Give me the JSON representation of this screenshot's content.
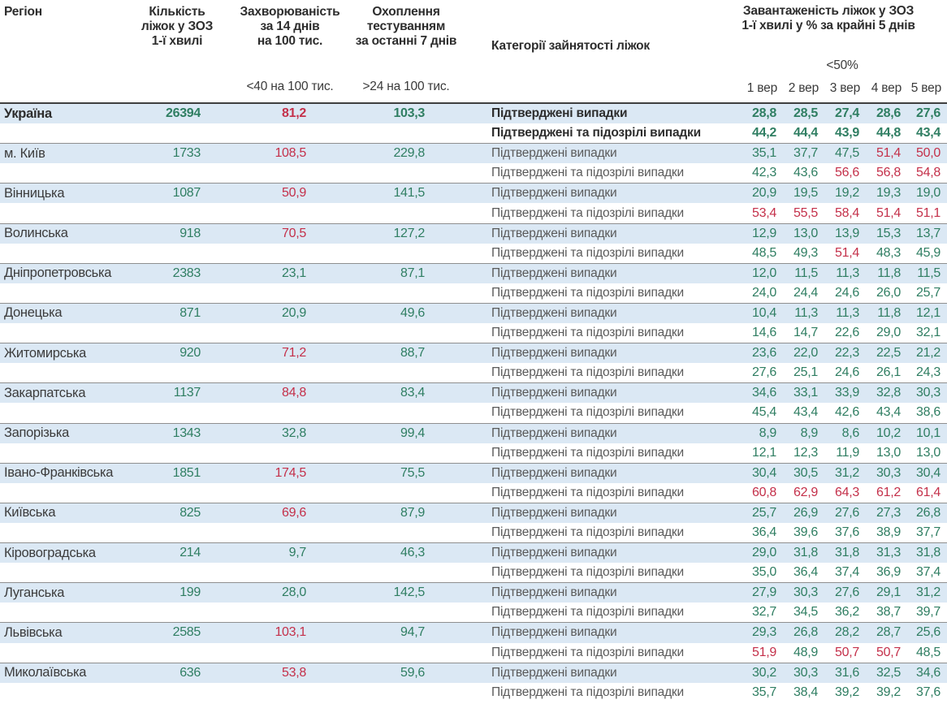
{
  "header": {
    "region": "Регіон",
    "beds": "Кількість\nліжок у ЗОЗ\n1-ї хвилі",
    "incidence": "Захворюваність\nза 14 днів\nна 100 тис.",
    "testing": "Охоплення\nтестуванням\nза останні 7 днів",
    "category": "Категорії зайнятості ліжок",
    "occupancy": "Завантаженість ліжок у ЗОЗ\n1-ї хвилі у % за крайні 5 днів",
    "incidence_threshold": "<40 на 100 тис.",
    "testing_threshold": ">24 на 100 тис.",
    "occupancy_threshold": "<50%",
    "dates": [
      "1 вер",
      "2 вер",
      "3 вер",
      "4 вер",
      "5 вер"
    ]
  },
  "category_labels": {
    "confirmed": "Підтверджені випадки",
    "confirmed_suspected": "Підтверджені та підозрілі випадки"
  },
  "colors": {
    "green": "#2f7e62",
    "red": "#c4304a",
    "row_highlight": "#dbe8f4"
  },
  "rules": {
    "incidence_red_min": 40,
    "occupancy_red_min": 50
  },
  "regions": [
    {
      "name": "Україна",
      "bold": true,
      "beds": "26394",
      "incidence": "81,2",
      "testing": "103,3",
      "occupancy_confirmed": [
        "28,8",
        "28,5",
        "27,4",
        "28,6",
        "27,6"
      ],
      "occupancy_confirmed_suspected": [
        "44,2",
        "44,4",
        "43,9",
        "44,8",
        "43,4"
      ]
    },
    {
      "name": "м. Київ",
      "bold": false,
      "beds": "1733",
      "incidence": "108,5",
      "testing": "229,8",
      "occupancy_confirmed": [
        "35,1",
        "37,7",
        "47,5",
        "51,4",
        "50,0"
      ],
      "occupancy_confirmed_suspected": [
        "42,3",
        "43,6",
        "56,6",
        "56,8",
        "54,8"
      ]
    },
    {
      "name": "Вінницька",
      "bold": false,
      "beds": "1087",
      "incidence": "50,9",
      "testing": "141,5",
      "occupancy_confirmed": [
        "20,9",
        "19,5",
        "19,2",
        "19,3",
        "19,0"
      ],
      "occupancy_confirmed_suspected": [
        "53,4",
        "55,5",
        "58,4",
        "51,4",
        "51,1"
      ]
    },
    {
      "name": "Волинська",
      "bold": false,
      "beds": "918",
      "incidence": "70,5",
      "testing": "127,2",
      "occupancy_confirmed": [
        "12,9",
        "13,0",
        "13,9",
        "15,3",
        "13,7"
      ],
      "occupancy_confirmed_suspected": [
        "48,5",
        "49,3",
        "51,4",
        "48,3",
        "45,9"
      ]
    },
    {
      "name": "Дніпропетровська",
      "bold": false,
      "beds": "2383",
      "incidence": "23,1",
      "testing": "87,1",
      "occupancy_confirmed": [
        "12,0",
        "11,5",
        "11,3",
        "11,8",
        "11,5"
      ],
      "occupancy_confirmed_suspected": [
        "24,0",
        "24,4",
        "24,6",
        "26,0",
        "25,7"
      ]
    },
    {
      "name": "Донецька",
      "bold": false,
      "beds": "871",
      "incidence": "20,9",
      "testing": "49,6",
      "occupancy_confirmed": [
        "10,4",
        "11,3",
        "11,3",
        "11,8",
        "12,1"
      ],
      "occupancy_confirmed_suspected": [
        "14,6",
        "14,7",
        "22,6",
        "29,0",
        "32,1"
      ]
    },
    {
      "name": "Житомирська",
      "bold": false,
      "beds": "920",
      "incidence": "71,2",
      "testing": "88,7",
      "occupancy_confirmed": [
        "23,6",
        "22,0",
        "22,3",
        "22,5",
        "21,2"
      ],
      "occupancy_confirmed_suspected": [
        "27,6",
        "25,1",
        "24,6",
        "26,1",
        "24,3"
      ]
    },
    {
      "name": "Закарпатська",
      "bold": false,
      "beds": "1137",
      "incidence": "84,8",
      "testing": "83,4",
      "occupancy_confirmed": [
        "34,6",
        "33,1",
        "33,9",
        "32,8",
        "30,3"
      ],
      "occupancy_confirmed_suspected": [
        "45,4",
        "43,4",
        "42,6",
        "43,4",
        "38,6"
      ]
    },
    {
      "name": "Запорізька",
      "bold": false,
      "beds": "1343",
      "incidence": "32,8",
      "testing": "99,4",
      "occupancy_confirmed": [
        "8,9",
        "8,9",
        "8,6",
        "10,2",
        "10,1"
      ],
      "occupancy_confirmed_suspected": [
        "12,1",
        "12,3",
        "11,9",
        "13,0",
        "13,0"
      ]
    },
    {
      "name": "Івано-Франківська",
      "bold": false,
      "beds": "1851",
      "incidence": "174,5",
      "testing": "75,5",
      "occupancy_confirmed": [
        "30,4",
        "30,5",
        "31,2",
        "30,3",
        "30,4"
      ],
      "occupancy_confirmed_suspected": [
        "60,8",
        "62,9",
        "64,3",
        "61,2",
        "61,4"
      ]
    },
    {
      "name": "Київська",
      "bold": false,
      "beds": "825",
      "incidence": "69,6",
      "testing": "87,9",
      "occupancy_confirmed": [
        "25,7",
        "26,9",
        "27,6",
        "27,3",
        "26,8"
      ],
      "occupancy_confirmed_suspected": [
        "36,4",
        "39,6",
        "37,6",
        "38,9",
        "37,7"
      ]
    },
    {
      "name": "Кіровоградська",
      "bold": false,
      "beds": "214",
      "incidence": "9,7",
      "testing": "46,3",
      "occupancy_confirmed": [
        "29,0",
        "31,8",
        "31,8",
        "31,3",
        "31,8"
      ],
      "occupancy_confirmed_suspected": [
        "35,0",
        "36,4",
        "37,4",
        "36,9",
        "37,4"
      ]
    },
    {
      "name": "Луганська",
      "bold": false,
      "beds": "199",
      "incidence": "28,0",
      "testing": "142,5",
      "occupancy_confirmed": [
        "27,9",
        "30,3",
        "27,6",
        "29,1",
        "31,2"
      ],
      "occupancy_confirmed_suspected": [
        "32,7",
        "34,5",
        "36,2",
        "38,7",
        "39,7"
      ]
    },
    {
      "name": "Львівська",
      "bold": false,
      "beds": "2585",
      "incidence": "103,1",
      "testing": "94,7",
      "occupancy_confirmed": [
        "29,3",
        "26,8",
        "28,2",
        "28,7",
        "25,6"
      ],
      "occupancy_confirmed_suspected": [
        "51,9",
        "48,9",
        "50,7",
        "50,7",
        "48,5"
      ]
    },
    {
      "name": "Миколаївська",
      "bold": false,
      "beds": "636",
      "incidence": "53,8",
      "testing": "59,6",
      "occupancy_confirmed": [
        "30,2",
        "30,3",
        "31,6",
        "32,5",
        "34,6"
      ],
      "occupancy_confirmed_suspected": [
        "35,7",
        "38,4",
        "39,2",
        "39,2",
        "37,6"
      ]
    }
  ]
}
